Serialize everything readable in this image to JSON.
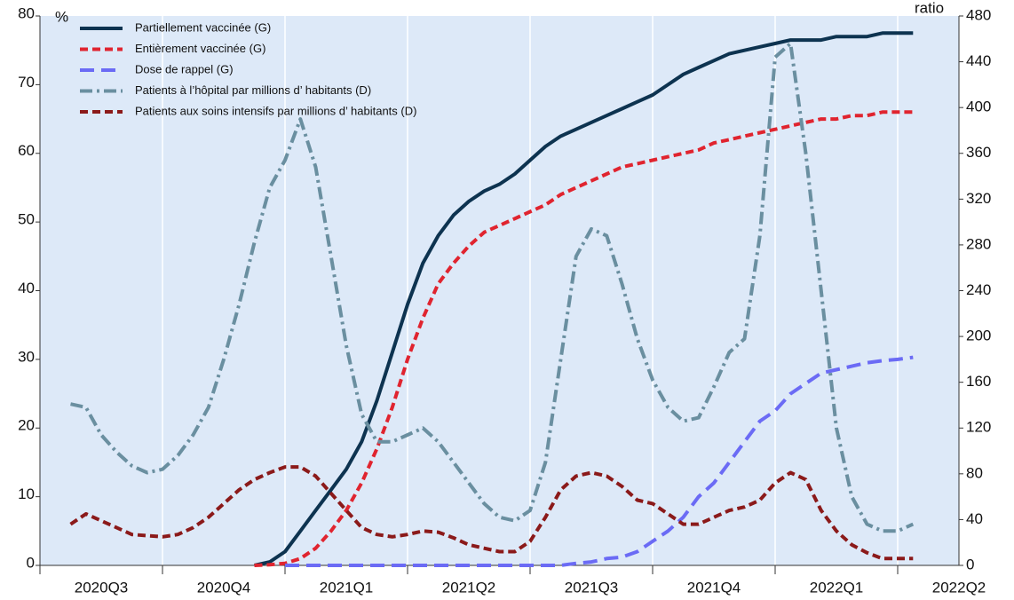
{
  "chart_data": {
    "type": "line",
    "y_label": "%",
    "y2_label": "ratio",
    "categories": [
      null,
      null,
      null,
      null,
      "2020Q3",
      null,
      null,
      null,
      null,
      null,
      null,
      null,
      "2020Q4",
      null,
      null,
      null,
      null,
      null,
      null,
      null,
      "2021Q1",
      null,
      null,
      null,
      null,
      null,
      null,
      null,
      "2021Q2",
      null,
      null,
      null,
      null,
      null,
      null,
      null,
      "2021Q3",
      null,
      null,
      null,
      null,
      null,
      null,
      null,
      "2021Q4",
      null,
      null,
      null,
      null,
      null,
      null,
      null,
      "2022Q1",
      null,
      null,
      null,
      null,
      null,
      null,
      null,
      "2022Q2"
    ],
    "ylim": [
      0,
      80
    ],
    "yticks": [
      0,
      10,
      20,
      30,
      40,
      50,
      60,
      70,
      80
    ],
    "y2lim": [
      0,
      480
    ],
    "y2ticks": [
      0,
      40,
      80,
      120,
      160,
      200,
      240,
      280,
      320,
      360,
      400,
      440,
      480
    ],
    "legend": "upper left",
    "series": [
      {
        "name": "Partiellement vaccinée (G)",
        "color": "#0d3350",
        "linestyle": "solid",
        "axis": "y",
        "values": [
          null,
          null,
          null,
          null,
          null,
          null,
          null,
          null,
          null,
          null,
          null,
          null,
          null,
          null,
          0,
          0.5,
          2,
          5,
          8,
          11,
          14,
          18,
          24,
          31,
          38,
          44,
          48,
          51,
          53,
          54.5,
          55.5,
          57,
          59,
          61,
          62.5,
          63.5,
          64.5,
          65.5,
          66.5,
          67.5,
          68.5,
          70,
          71.5,
          72.5,
          73.5,
          74.5,
          75,
          75.5,
          76,
          76.5,
          76.5,
          76.5,
          77,
          77,
          77,
          77.5,
          77.5,
          77.5,
          null,
          null,
          null
        ]
      },
      {
        "name": "Entièrement vaccinée (G)",
        "color": "#e0242f",
        "linestyle": "dashed",
        "axis": "y",
        "values": [
          null,
          null,
          null,
          null,
          null,
          null,
          null,
          null,
          null,
          null,
          null,
          null,
          null,
          null,
          0,
          0.1,
          0.3,
          1,
          2.5,
          5,
          8,
          12,
          17,
          23,
          30,
          36,
          41,
          44,
          46.5,
          48.5,
          49.5,
          50.5,
          51.5,
          52.5,
          54,
          55,
          56,
          57,
          58,
          58.5,
          59,
          59.5,
          60,
          60.5,
          61.5,
          62,
          62.5,
          63,
          63.5,
          64,
          64.5,
          65,
          65,
          65.5,
          65.5,
          66,
          66,
          66,
          null,
          null,
          null
        ]
      },
      {
        "name": "Dose de rappel (G)",
        "color": "#6b6bf5",
        "linestyle": "longdash",
        "axis": "y",
        "values": [
          null,
          null,
          null,
          null,
          null,
          null,
          null,
          null,
          null,
          null,
          null,
          null,
          null,
          null,
          null,
          null,
          0,
          0,
          0,
          0,
          0,
          0,
          0,
          0,
          0,
          0,
          0,
          0,
          0,
          0,
          0,
          0,
          0,
          0,
          0,
          0.3,
          0.5,
          1,
          1.2,
          2,
          3.5,
          5,
          7,
          10,
          12,
          15,
          18,
          21,
          22.5,
          25,
          26.5,
          28,
          28.5,
          29,
          29.5,
          29.8,
          30,
          30.3,
          null,
          null,
          null
        ]
      },
      {
        "name": "Patients à l’hôpital par millions d’ habitants (D)",
        "color": "#6a8fa0",
        "linestyle": "dashdot",
        "axis": "y2",
        "values": [
          null,
          null,
          141,
          138,
          114,
          99,
          87,
          81,
          84,
          96,
          114,
          138,
          180,
          228,
          282,
          330,
          354,
          390,
          348,
          270,
          192,
          132,
          108,
          108,
          114,
          120,
          108,
          90,
          72,
          54,
          42,
          39,
          48,
          90,
          180,
          270,
          294,
          288,
          246,
          198,
          162,
          138,
          126,
          129,
          156,
          186,
          198,
          288,
          444,
          456,
          360,
          240,
          120,
          60,
          36,
          30,
          30,
          36,
          null,
          null,
          null
        ]
      },
      {
        "name": "Patients aux soins intensifs par millions d’ habitants (D)",
        "color": "#8b1a1a",
        "linestyle": "dashed",
        "axis": "y2",
        "values": [
          null,
          null,
          36,
          45,
          39,
          33,
          27,
          26,
          25,
          27,
          33,
          42,
          54,
          66,
          75,
          81,
          86,
          86,
          78,
          63,
          48,
          33,
          27,
          25,
          27,
          30,
          29,
          24,
          18,
          15,
          12,
          12,
          21,
          42,
          66,
          78,
          81,
          78,
          69,
          57,
          54,
          45,
          36,
          36,
          42,
          48,
          51,
          57,
          72,
          81,
          75,
          48,
          30,
          18,
          11,
          6,
          6,
          6,
          null,
          null,
          null
        ]
      }
    ]
  }
}
